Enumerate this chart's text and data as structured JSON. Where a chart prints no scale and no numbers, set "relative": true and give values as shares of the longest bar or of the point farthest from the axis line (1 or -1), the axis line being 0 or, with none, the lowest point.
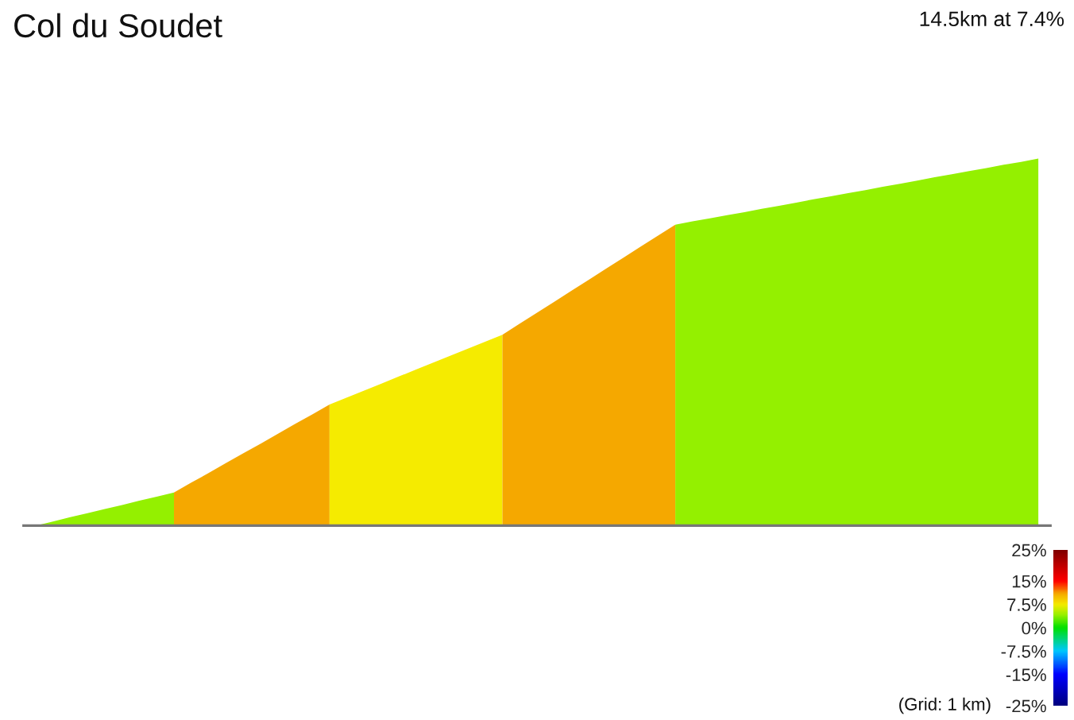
{
  "chart_data": {
    "type": "area",
    "title": "Col du Soudet",
    "subtitle": "14.5km at 7.4%",
    "relative": true,
    "categories": [
      null,
      null,
      null,
      null,
      null,
      null,
      null,
      null,
      null,
      null,
      null,
      null,
      null,
      null,
      null,
      null,
      null,
      null,
      null,
      null,
      null,
      null,
      null,
      null,
      null,
      null,
      null,
      null,
      null,
      null,
      null,
      null,
      null,
      null,
      null,
      null,
      null,
      null,
      null,
      null,
      null,
      null,
      null,
      null,
      null,
      null,
      null,
      null,
      null,
      null,
      null,
      null,
      null,
      null,
      null,
      null,
      null,
      null,
      null
    ],
    "series": [
      {
        "color": "#94f000",
        "values": [
          0,
          0.011,
          0.023,
          0.034,
          0.045,
          0.056,
          0.068,
          0.079,
          0.09,
          null,
          null,
          null,
          null,
          null,
          null,
          null,
          null,
          null,
          null,
          null,
          null,
          null,
          null,
          null,
          null,
          null,
          null,
          null,
          null,
          null,
          null,
          null,
          null,
          null,
          null,
          null,
          null,
          null,
          null,
          null,
          null,
          null,
          null,
          null,
          null,
          null,
          null,
          null,
          null,
          null,
          null,
          null,
          null,
          null,
          null,
          null,
          null,
          null,
          null
        ]
      },
      {
        "color": "#f5a800",
        "values": [
          null,
          null,
          null,
          null,
          null,
          null,
          null,
          null,
          0.09,
          0.117,
          0.143,
          0.17,
          0.197,
          0.223,
          0.25,
          0.277,
          0.303,
          0.33,
          null,
          null,
          null,
          null,
          null,
          null,
          null,
          null,
          null,
          null,
          null,
          null,
          null,
          null,
          null,
          null,
          null,
          null,
          null,
          null,
          null,
          null,
          null,
          null,
          null,
          null,
          null,
          null,
          null,
          null,
          null,
          null,
          null,
          null,
          null,
          null,
          null,
          null,
          null,
          null,
          null
        ]
      },
      {
        "color": "#f5eb00",
        "values": [
          null,
          null,
          null,
          null,
          null,
          null,
          null,
          null,
          null,
          null,
          null,
          null,
          null,
          null,
          null,
          null,
          null,
          0.33,
          0.349,
          0.368,
          0.387,
          0.406,
          0.425,
          0.444,
          0.463,
          0.482,
          0.501,
          0.52,
          null,
          null,
          null,
          null,
          null,
          null,
          null,
          null,
          null,
          null,
          null,
          null,
          null,
          null,
          null,
          null,
          null,
          null,
          null,
          null,
          null,
          null,
          null,
          null,
          null,
          null,
          null,
          null,
          null,
          null,
          null
        ]
      },
      {
        "color": "#f5a800",
        "values": [
          null,
          null,
          null,
          null,
          null,
          null,
          null,
          null,
          null,
          null,
          null,
          null,
          null,
          null,
          null,
          null,
          null,
          null,
          null,
          null,
          null,
          null,
          null,
          null,
          null,
          null,
          null,
          0.52,
          0.55,
          0.58,
          0.61,
          0.64,
          0.67,
          0.7,
          0.73,
          0.76,
          0.79,
          0.82,
          null,
          null,
          null,
          null,
          null,
          null,
          null,
          null,
          null,
          null,
          null,
          null,
          null,
          null,
          null,
          null,
          null,
          null,
          null,
          null,
          null
        ]
      },
      {
        "color": "#94f000",
        "values": [
          null,
          null,
          null,
          null,
          null,
          null,
          null,
          null,
          null,
          null,
          null,
          null,
          null,
          null,
          null,
          null,
          null,
          null,
          null,
          null,
          null,
          null,
          null,
          null,
          null,
          null,
          null,
          null,
          null,
          null,
          null,
          null,
          null,
          null,
          null,
          null,
          null,
          0.82,
          0.829,
          0.837,
          0.846,
          0.854,
          0.863,
          0.871,
          0.88,
          0.889,
          0.897,
          0.906,
          0.914,
          0.923,
          0.931,
          0.94,
          0.949,
          0.957,
          0.966,
          0.974,
          0.983,
          0.991,
          1
        ]
      }
    ],
    "clim": [
      -25,
      25
    ],
    "cticks": [
      {
        "value": 25,
        "label": "25%"
      },
      {
        "value": 15,
        "label": "15%"
      },
      {
        "value": 7.5,
        "label": "7.5%"
      },
      {
        "value": 0,
        "label": "0%"
      },
      {
        "value": -7.5,
        "label": "-7.5%"
      },
      {
        "value": -15,
        "label": "-15%"
      },
      {
        "value": -25,
        "label": "-25%"
      }
    ],
    "annotations": [
      "(Grid: 1 km)"
    ]
  }
}
